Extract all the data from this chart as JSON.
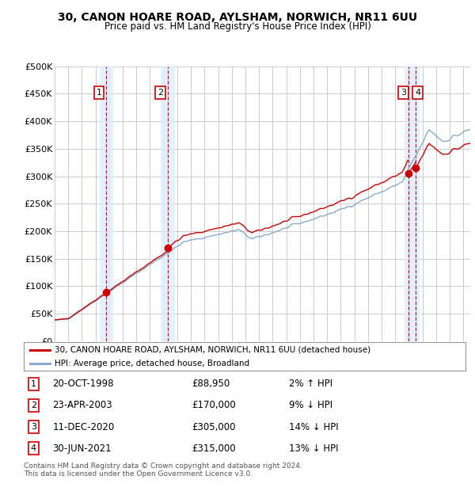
{
  "title": "30, CANON HOARE ROAD, AYLSHAM, NORWICH, NR11 6UU",
  "subtitle": "Price paid vs. HM Land Registry's House Price Index (HPI)",
  "ylim": [
    0,
    500000
  ],
  "yticks": [
    0,
    50000,
    100000,
    150000,
    200000,
    250000,
    300000,
    350000,
    400000,
    450000,
    500000
  ],
  "ytick_labels": [
    "£0",
    "£50K",
    "£100K",
    "£150K",
    "£200K",
    "£250K",
    "£300K",
    "£350K",
    "£400K",
    "£450K",
    "£500K"
  ],
  "sale_year_floats": [
    1998.8,
    2003.31,
    2020.95,
    2021.5
  ],
  "sale_prices": [
    88950,
    170000,
    305000,
    315000
  ],
  "sale_labels": [
    "1",
    "2",
    "3",
    "4"
  ],
  "sale_color": "#cc0000",
  "hpi_color": "#88aacc",
  "shade_color": "#ddeeff",
  "dashed_color": "#cc0000",
  "legend_label_sale": "30, CANON HOARE ROAD, AYLSHAM, NORWICH, NR11 6UU (detached house)",
  "legend_label_hpi": "HPI: Average price, detached house, Broadland",
  "table_entries": [
    {
      "num": "1",
      "date": "20-OCT-1998",
      "price": "£88,950",
      "note": "2% ↑ HPI"
    },
    {
      "num": "2",
      "date": "23-APR-2003",
      "price": "£170,000",
      "note": "9% ↓ HPI"
    },
    {
      "num": "3",
      "date": "11-DEC-2020",
      "price": "£305,000",
      "note": "14% ↓ HPI"
    },
    {
      "num": "4",
      "date": "30-JUN-2021",
      "price": "£315,000",
      "note": "13% ↓ HPI"
    }
  ],
  "footnote": "Contains HM Land Registry data © Crown copyright and database right 2024.\nThis data is licensed under the Open Government Licence v3.0.",
  "background_color": "#ffffff",
  "grid_color": "#cccccc"
}
